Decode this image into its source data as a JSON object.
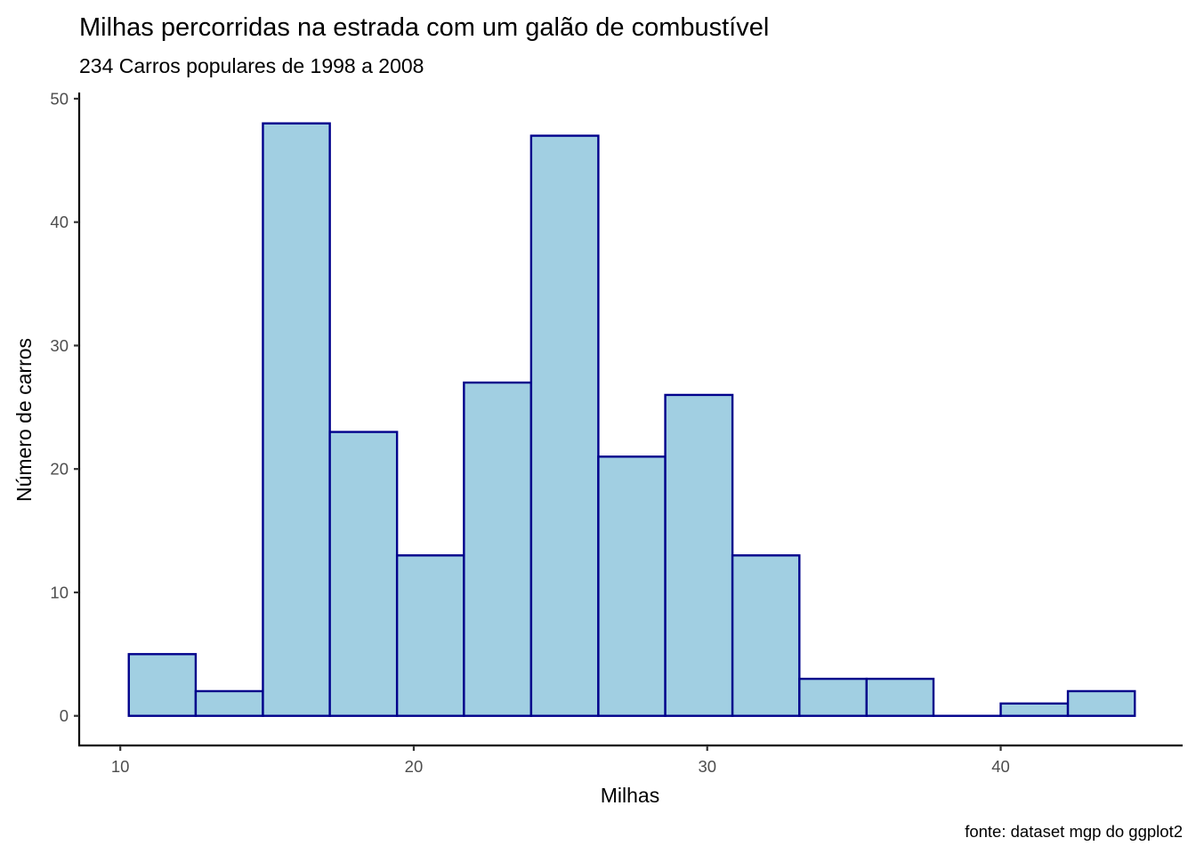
{
  "chart_data": {
    "type": "bar",
    "title": "Milhas percorridas na estrada com um galão de combustível",
    "subtitle": "234 Carros populares de 1998 a 2008",
    "xlabel": "Milhas",
    "ylabel": "Número de carros",
    "caption": "fonte: dataset mgp do ggplot2",
    "xlim": [
      8.6,
      46.2
    ],
    "ylim": [
      -2.4,
      50.5
    ],
    "x_ticks": [
      10,
      20,
      30,
      40
    ],
    "y_ticks": [
      0,
      10,
      20,
      30,
      40,
      50
    ],
    "bins": [
      {
        "x0": 10.29,
        "x1": 12.57,
        "count": 5
      },
      {
        "x0": 12.57,
        "x1": 14.86,
        "count": 2
      },
      {
        "x0": 14.86,
        "x1": 17.14,
        "count": 48
      },
      {
        "x0": 17.14,
        "x1": 19.43,
        "count": 23
      },
      {
        "x0": 19.43,
        "x1": 21.71,
        "count": 13
      },
      {
        "x0": 21.71,
        "x1": 24.0,
        "count": 27
      },
      {
        "x0": 24.0,
        "x1": 26.29,
        "count": 47
      },
      {
        "x0": 26.29,
        "x1": 28.57,
        "count": 21
      },
      {
        "x0": 28.57,
        "x1": 30.86,
        "count": 26
      },
      {
        "x0": 30.86,
        "x1": 33.14,
        "count": 13
      },
      {
        "x0": 33.14,
        "x1": 35.43,
        "count": 3
      },
      {
        "x0": 35.43,
        "x1": 37.71,
        "count": 3
      },
      {
        "x0": 37.71,
        "x1": 40.0,
        "count": 0
      },
      {
        "x0": 40.0,
        "x1": 42.29,
        "count": 1
      },
      {
        "x0": 42.29,
        "x1": 44.57,
        "count": 2
      }
    ],
    "total": 234,
    "fill_color": "#a1cfe2",
    "outline_color": "#00008b",
    "grid": false,
    "legend": "none"
  }
}
